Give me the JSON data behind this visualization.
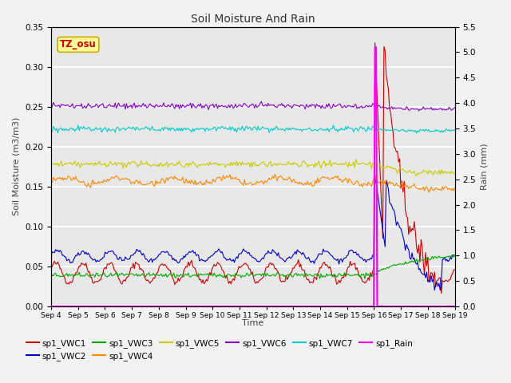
{
  "title": "Soil Moisture And Rain",
  "xlabel": "Time",
  "ylabel_left": "Soil Moisture (m3/m3)",
  "ylabel_right": "Rain (mm)",
  "ylim_left": [
    0.0,
    0.35
  ],
  "ylim_right": [
    0.0,
    5.5
  ],
  "xtick_labels": [
    "Sep 4",
    "Sep 5",
    "Sep 6",
    "Sep 7",
    "Sep 8",
    "Sep 9",
    "Sep 10",
    "Sep 11",
    "Sep 12",
    "Sep 13",
    "Sep 14",
    "Sep 15",
    "Sep 16",
    "Sep 17",
    "Sep 18",
    "Sep 19"
  ],
  "yticks_left": [
    0.0,
    0.05,
    0.1,
    0.15,
    0.2,
    0.25,
    0.3,
    0.35
  ],
  "yticks_right": [
    0.0,
    0.5,
    1.0,
    1.5,
    2.0,
    2.5,
    3.0,
    3.5,
    4.0,
    4.5,
    5.0,
    5.5
  ],
  "station_label": "TZ_osu",
  "station_label_color": "#cc0000",
  "station_box_facecolor": "#ffff99",
  "station_box_edgecolor": "#ccaa00",
  "plot_bgcolor": "#e8e8e8",
  "fig_bgcolor": "#f2f2f2",
  "grid_color": "#ffffff",
  "series_colors": {
    "VWC1": "#cc0000",
    "VWC2": "#0000cc",
    "VWC3": "#00aa00",
    "VWC4": "#ff8800",
    "VWC5": "#cccc00",
    "VWC6": "#8800cc",
    "VWC7": "#00cccc",
    "Rain": "#ff00ff"
  },
  "legend_row1": [
    {
      "label": "sp1_VWC1",
      "color": "#cc0000"
    },
    {
      "label": "sp1_VWC2",
      "color": "#0000cc"
    },
    {
      "label": "sp1_VWC3",
      "color": "#00aa00"
    },
    {
      "label": "sp1_VWC4",
      "color": "#ff8800"
    },
    {
      "label": "sp1_VWC5",
      "color": "#cccc00"
    },
    {
      "label": "sp1_VWC6",
      "color": "#8800cc"
    }
  ],
  "legend_row2": [
    {
      "label": "sp1_VWC7",
      "color": "#00cccc"
    },
    {
      "label": "sp1_Rain",
      "color": "#ff00ff"
    }
  ]
}
